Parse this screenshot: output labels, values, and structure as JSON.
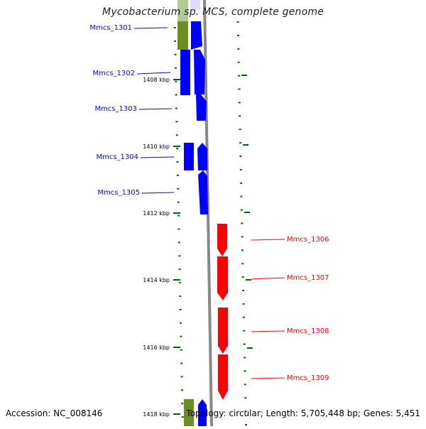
{
  "title": "Mycobacterium sp. MCS, complete genome",
  "footer": {
    "accession": "Accession: NC_008146",
    "summary": "Topology: circular; Length: 5,705,448 bp; Genes: 5,451"
  },
  "colors": {
    "forward_gene": "#0000ff",
    "reverse_gene": "#ff0000",
    "other_feature": "#6b8e23",
    "tick": "#006400",
    "backbone": "#888888"
  },
  "kbp_ticks": [
    "1408 kbp",
    "1410 kbp",
    "1412 kbp",
    "1414 kbp",
    "1416 kbp",
    "1418 kbp"
  ],
  "genes_left": [
    {
      "label": "Mmcs_1301"
    },
    {
      "label": "Mmcs_1302"
    },
    {
      "label": "Mmcs_1303"
    },
    {
      "label": "Mmcs_1304"
    },
    {
      "label": "Mmcs_1305"
    }
  ],
  "genes_right": [
    {
      "label": "Mmcs_1306"
    },
    {
      "label": "Mmcs_1307"
    },
    {
      "label": "Mmcs_1308"
    },
    {
      "label": "Mmcs_1309"
    }
  ]
}
